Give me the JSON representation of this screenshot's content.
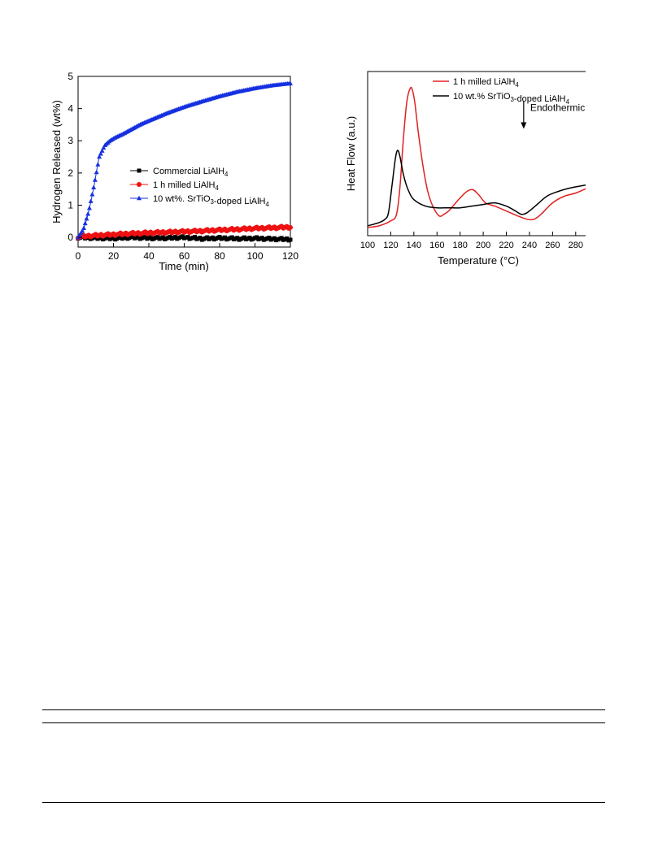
{
  "chart_data": [
    {
      "type": "scatter",
      "title": "",
      "xlabel": "Time (min)",
      "ylabel": "Hydrogen Released (wt%)",
      "xlim": [
        0,
        120
      ],
      "ylim": [
        -0.3,
        5
      ],
      "xticks": [
        0,
        20,
        40,
        60,
        80,
        100,
        120
      ],
      "yticks": [
        0,
        1,
        2,
        3,
        4,
        5
      ],
      "grid": false,
      "legend_position": "center-right",
      "series": [
        {
          "name": "Commercial LiAlH4",
          "name_parts": [
            [
              "Commercial LiAlH",
              ""
            ],
            [
              "4",
              "sub"
            ]
          ],
          "color": "#000000",
          "marker": "square",
          "x": [
            0,
            10,
            20,
            30,
            40,
            50,
            60,
            70,
            80,
            90,
            100,
            110,
            120
          ],
          "y": [
            0.0,
            -0.02,
            -0.03,
            0.0,
            -0.02,
            -0.02,
            0.0,
            -0.04,
            -0.02,
            -0.04,
            -0.03,
            -0.05,
            -0.06
          ]
        },
        {
          "name": "1 h milled LiAlH4",
          "name_parts": [
            [
              "1 h milled LiAlH",
              ""
            ],
            [
              "4",
              "sub"
            ]
          ],
          "color": "#ee1111",
          "marker": "circle",
          "x": [
            0,
            10,
            20,
            30,
            40,
            50,
            60,
            70,
            80,
            90,
            100,
            110,
            120
          ],
          "y": [
            0.02,
            0.06,
            0.09,
            0.12,
            0.14,
            0.16,
            0.18,
            0.2,
            0.23,
            0.25,
            0.28,
            0.3,
            0.32
          ]
        },
        {
          "name": "10 wt%. SrTiO3-doped LiAlH4",
          "name_parts": [
            [
              "10 wt%. SrTiO",
              ""
            ],
            [
              "3",
              "sub"
            ],
            [
              "-doped LiAlH",
              ""
            ],
            [
              "4",
              "sub"
            ]
          ],
          "color": "#1530e0",
          "marker": "triangle",
          "x": [
            0,
            3,
            6,
            9,
            12,
            15,
            18,
            21,
            25,
            30,
            35,
            40,
            50,
            60,
            70,
            80,
            90,
            100,
            110,
            120
          ],
          "y": [
            0,
            0.25,
            0.8,
            1.6,
            2.5,
            2.85,
            3.0,
            3.1,
            3.2,
            3.35,
            3.5,
            3.62,
            3.85,
            4.05,
            4.22,
            4.38,
            4.52,
            4.63,
            4.72,
            4.78
          ]
        }
      ]
    },
    {
      "type": "line",
      "title": "",
      "xlabel": "Temperature (°C)",
      "ylabel": "Heat Flow (a.u.)",
      "xlim": [
        100,
        290
      ],
      "ylim": [
        0,
        100
      ],
      "xticks": [
        100,
        120,
        140,
        160,
        180,
        200,
        220,
        240,
        260,
        280
      ],
      "yticks": [],
      "grid": false,
      "legend_position": "top",
      "annotation": {
        "text": "Endothermic",
        "x": 235,
        "y": 75
      },
      "series": [
        {
          "name": "1 h milled LiAlH4",
          "name_parts": [
            [
              "1 h milled LiAlH",
              ""
            ],
            [
              "4",
              "sub"
            ]
          ],
          "color": "#e02020",
          "x": [
            100,
            110,
            120,
            125,
            128,
            131,
            134,
            137,
            139,
            141,
            144,
            148,
            152,
            157,
            162,
            166,
            170,
            175,
            180,
            186,
            191,
            196,
            202,
            210,
            220,
            230,
            238,
            244,
            250,
            260,
            270,
            280,
            290
          ],
          "y": [
            5,
            6,
            9,
            13,
            30,
            60,
            82,
            90,
            88,
            80,
            62,
            42,
            27,
            17,
            12,
            13,
            15,
            19,
            23,
            27,
            28,
            25,
            20,
            18,
            15,
            12,
            10,
            10,
            13,
            20,
            24,
            26,
            29
          ]
        },
        {
          "name": "10 wt.% SrTiO3-doped LiAlH4",
          "name_parts": [
            [
              "10 wt.% SrTiO",
              ""
            ],
            [
              "3",
              "sub"
            ],
            [
              "-doped LiAlH",
              ""
            ],
            [
              "4",
              "sub"
            ]
          ],
          "color": "#000000",
          "x": [
            100,
            110,
            115,
            118,
            121,
            124,
            126,
            128,
            131,
            135,
            140,
            150,
            160,
            170,
            180,
            190,
            200,
            210,
            220,
            228,
            233,
            238,
            245,
            255,
            265,
            275,
            290
          ],
          "y": [
            6,
            8,
            10,
            14,
            30,
            47,
            52,
            48,
            37,
            28,
            22,
            18,
            17,
            17,
            17,
            18,
            19,
            20,
            18,
            15,
            13,
            14,
            18,
            24,
            27,
            29,
            31
          ]
        }
      ]
    }
  ]
}
